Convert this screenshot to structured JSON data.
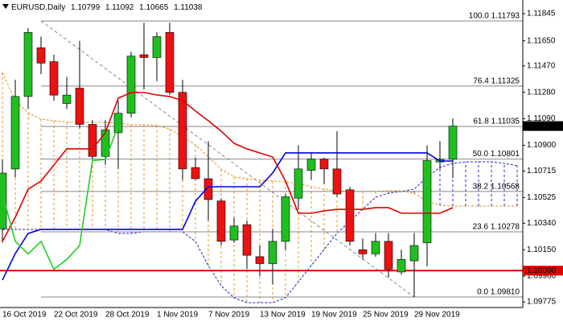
{
  "chart_data": {
    "type": "candlestick",
    "title": "EURUSD,Daily",
    "categories": [
      "16 Oct 2019",
      null,
      null,
      null,
      "22 Oct 2019",
      null,
      null,
      null,
      "28 Oct 2019",
      null,
      null,
      null,
      "1 Nov 2019",
      null,
      null,
      null,
      "7 Nov 2019",
      null,
      null,
      null,
      "13 Nov 2019",
      null,
      null,
      null,
      "19 Nov 2019",
      null,
      null,
      null,
      "25 Nov 2019",
      null,
      null,
      null,
      "29 Nov 2019",
      null,
      null,
      null,
      null,
      null,
      null,
      null,
      null
    ],
    "open": [
      1.103,
      1.1073,
      1.1125,
      1.116,
      1.115,
      1.112,
      1.1131,
      1.1105,
      1.1082,
      1.1099,
      1.1113,
      1.1155,
      1.1153,
      1.1171,
      1.1128,
      1.1074,
      1.1066,
      1.105,
      1.1022,
      1.1033,
      1.101,
      1.1005,
      1.1021,
      1.1052,
      1.1072,
      1.108,
      1.1073,
      1.1058,
      1.1015,
      1.1012,
      1.1021,
      1.0999,
      1.1007,
      1.102,
      1.1078,
      1.10799,
      null,
      null,
      null,
      null,
      null
    ],
    "high": [
      1.108,
      1.1137,
      1.1174,
      1.1168,
      1.1155,
      1.1139,
      1.1165,
      1.1108,
      1.1108,
      1.1122,
      1.1157,
      1.1178,
      1.1171,
      1.1178,
      1.1137,
      1.1081,
      1.1093,
      1.1052,
      1.1038,
      1.1036,
      1.1018,
      1.103,
      1.1055,
      1.109,
      1.1085,
      1.1081,
      1.11,
      1.106,
      1.1023,
      1.1027,
      1.1027,
      1.1015,
      1.1027,
      1.109,
      1.1093,
      1.11092,
      null,
      null,
      null,
      null,
      null
    ],
    "low": [
      1.102,
      1.1067,
      1.1116,
      1.1141,
      1.1122,
      1.1116,
      1.1102,
      1.108,
      1.1076,
      1.1073,
      1.111,
      1.113,
      1.1136,
      1.1126,
      1.1065,
      1.1065,
      1.1036,
      1.1018,
      1.102,
      1.1001,
      1.0996,
      1.099,
      1.1015,
      1.1044,
      1.1065,
      1.1062,
      1.1053,
      1.1018,
      1.1008,
      1.101,
      1.0995,
      1.0997,
      1.0981,
      1.1003,
      1.1073,
      1.10665,
      null,
      null,
      null,
      null,
      null
    ],
    "close": [
      1.107,
      1.1125,
      1.1171,
      1.1149,
      1.1126,
      1.1126,
      1.1105,
      1.1082,
      1.1101,
      1.1113,
      1.1154,
      1.1153,
      1.1168,
      1.1128,
      1.1073,
      1.1066,
      1.1051,
      1.1021,
      1.1032,
      1.1011,
      1.1005,
      1.1021,
      1.1053,
      1.1073,
      1.108,
      1.1073,
      1.1055,
      1.1021,
      1.1012,
      1.1021,
      1.1001,
      1.1008,
      1.1018,
      1.1079,
      1.10799,
      1.11038,
      null,
      null,
      null,
      null,
      null
    ],
    "up_color": "#1fbf1f",
    "down_color": "#ee1111",
    "series": [
      {
        "color": "#e00000",
        "style": "solid",
        "values": [
          1.10209,
          1.10383,
          1.10585,
          1.10643,
          1.10758,
          1.10874,
          1.10874,
          1.10874,
          1.1099,
          1.11238,
          1.11279,
          1.11279,
          1.11261,
          1.1125,
          1.11221,
          1.11146,
          1.11076,
          1.11001,
          1.10914,
          1.10874,
          1.10845,
          1.10816,
          1.10643,
          1.10412,
          1.10412,
          1.10429,
          1.1044,
          1.1044,
          1.1044,
          1.10452,
          1.10452,
          1.10412,
          1.10412,
          1.10412,
          1.10412,
          1.10452,
          null,
          null,
          null,
          null,
          null
        ]
      },
      {
        "color": "#0000dd",
        "style": "solid",
        "values": [
          1.09932,
          1.10123,
          1.10267,
          1.10296,
          1.10296,
          1.10296,
          1.10296,
          1.10296,
          1.10296,
          1.10296,
          1.10296,
          1.10296,
          1.10296,
          1.10296,
          1.10296,
          1.10498,
          1.10602,
          1.10602,
          1.10602,
          1.10602,
          1.10602,
          1.10701,
          1.10845,
          1.10845,
          1.10845,
          1.10845,
          1.10845,
          1.10845,
          1.10845,
          1.10845,
          1.10845,
          1.10845,
          1.10845,
          1.10845,
          1.10787,
          1.10787,
          null,
          null,
          null,
          null,
          null
        ]
      },
      {
        "color": "#22cc22",
        "style": "solid",
        "values": [
          1.1055,
          1.1021,
          1.1012,
          1.1021,
          1.1001,
          1.1008,
          1.1018,
          1.1079,
          1.10799,
          1.11038,
          null,
          null,
          null,
          null,
          null,
          null,
          null,
          null,
          null,
          null,
          null,
          null,
          null,
          null,
          null,
          null,
          null,
          null,
          null,
          null,
          null,
          null,
          null,
          null,
          null,
          null,
          null,
          null,
          null,
          null,
          null
        ]
      },
      {
        "color": "#e8901e",
        "style": "dashed",
        "values": [
          1.11423,
          1.11221,
          1.11134,
          1.11088,
          1.11076,
          1.11065,
          1.11065,
          1.11065,
          1.11065,
          1.11059,
          1.11047,
          1.11047,
          1.11042,
          1.11018,
          1.10961,
          1.10903,
          1.10816,
          1.10729,
          1.10672,
          1.1066,
          1.10649,
          1.10643,
          1.10637,
          1.10625,
          1.10602,
          1.10585,
          1.10573,
          1.10568,
          1.10568,
          1.10568,
          1.10573,
          1.10573,
          1.10556,
          1.10498,
          1.10469,
          1.10463,
          1.10463,
          1.10463,
          1.10463,
          1.10463,
          1.10463
        ]
      },
      {
        "color": "#2020c8",
        "style": "dashed",
        "values": [
          1.10296,
          1.10296,
          1.10296,
          1.10296,
          1.10296,
          1.10296,
          1.10296,
          1.10296,
          1.10296,
          1.10267,
          1.10267,
          1.10279,
          1.10279,
          1.10279,
          1.10279,
          1.10209,
          1.10036,
          1.09891,
          1.09805,
          1.0977,
          1.0977,
          1.0977,
          1.09805,
          1.0992,
          1.10036,
          1.10152,
          1.10267,
          1.10354,
          1.1044,
          1.10527,
          1.10556,
          1.10568,
          1.10585,
          1.10672,
          1.10741,
          1.1077,
          1.10781,
          1.10781,
          1.10781,
          1.1077,
          1.10753
        ]
      }
    ],
    "fib_color": "#888888",
    "fib_levels": [
      {
        "value": 1.11793,
        "label": "100.0 1.11793"
      },
      {
        "value": 1.11325,
        "label": "76.4 1.11325"
      },
      {
        "value": 1.11035,
        "label": "61.8 1.11035"
      },
      {
        "value": 1.10801,
        "label": "50.0 1.10801"
      },
      {
        "value": 1.10568,
        "label": "38.2 1.10568"
      },
      {
        "value": 1.10278,
        "label": "23.6 1.10278"
      },
      {
        "value": 1.0981,
        "label": "0.0 1.09810"
      }
    ],
    "hline": {
      "value": 1.1,
      "label": "1.10000",
      "color": "#e00000"
    },
    "ylim": [
      1.09735,
      1.11943
    ],
    "yticks": [
      1.11845,
      {
        "value": 1.1165,
        "label": "1.11650"
      },
      {
        "value": 1.1147,
        "label": "1.11470"
      },
      {
        "value": 1.1128,
        "label": "1.11280"
      },
      {
        "value": 1.1109,
        "label": "1.11090"
      },
      {
        "value": 1.109,
        "label": "1.10900"
      },
      1.10715,
      1.10525,
      {
        "value": 1.1034,
        "label": "1.10340"
      },
      {
        "value": 1.1015,
        "label": "1.10150"
      },
      {
        "value": 1.0996,
        "label": "1.09960"
      },
      1.09775
    ]
  }
}
